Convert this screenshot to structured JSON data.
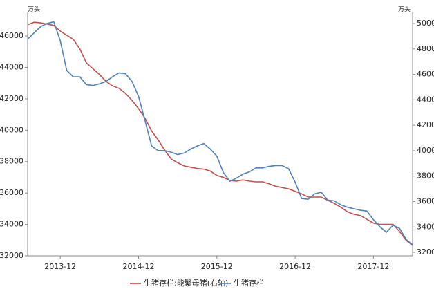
{
  "chart_data": {
    "type": "line",
    "y_label": "万头",
    "y2_label": "万头",
    "categories": [
      null,
      null,
      null,
      null,
      null,
      "2013-12",
      null,
      null,
      null,
      null,
      null,
      null,
      null,
      null,
      null,
      null,
      null,
      "2014-12",
      null,
      null,
      null,
      null,
      null,
      null,
      null,
      null,
      null,
      null,
      null,
      "2015-12",
      null,
      null,
      null,
      null,
      null,
      null,
      null,
      null,
      null,
      null,
      null,
      "2016-12",
      null,
      null,
      null,
      null,
      null,
      null,
      null,
      null,
      null,
      null,
      null,
      "2017-12",
      null,
      null,
      null,
      null,
      null,
      null
    ],
    "series": [
      {
        "name": "生猪存栏:能繁母猪(右轴)",
        "color": "#c0504d",
        "axis": "y2",
        "values": [
          4990,
          5010,
          5005,
          4995,
          4985,
          4940,
          4907,
          4875,
          4800,
          4690,
          4645,
          4600,
          4545,
          4510,
          4490,
          4450,
          4395,
          4330,
          4255,
          4155,
          4085,
          4005,
          3935,
          3905,
          3880,
          3870,
          3860,
          3855,
          3840,
          3805,
          3790,
          3765,
          3760,
          3770,
          3760,
          3755,
          3755,
          3740,
          3720,
          3710,
          3700,
          3680,
          3660,
          3635,
          3635,
          3635,
          3610,
          3585,
          3555,
          3520,
          3500,
          3490,
          3460,
          3430,
          3420,
          3420,
          3420,
          3365,
          3295,
          3255
        ]
      },
      {
        "name": "生猪存栏",
        "color": "#4f81bd",
        "values": [
          45800,
          46200,
          46600,
          46800,
          46900,
          45700,
          43800,
          43400,
          43400,
          42900,
          42850,
          42950,
          43100,
          43400,
          43650,
          43600,
          43100,
          42150,
          40600,
          39000,
          38700,
          38700,
          38600,
          38450,
          38550,
          38800,
          39000,
          39150,
          38800,
          38350,
          37300,
          36750,
          36950,
          37200,
          37350,
          37600,
          37600,
          37700,
          37750,
          37750,
          37550,
          36700,
          35650,
          35600,
          35950,
          36050,
          35550,
          35500,
          35250,
          35100,
          35000,
          34900,
          34850,
          34300,
          33850,
          33500,
          33950,
          33750,
          33050,
          32700
        ]
      }
    ],
    "ylim": [
      32000,
      47500
    ],
    "yticks": [
      32000,
      34000,
      36000,
      38000,
      40000,
      42000,
      44000,
      46000
    ],
    "y2lim": [
      3173,
      5087
    ],
    "y2ticks": [
      3200,
      3400,
      3600,
      3800,
      4000,
      4200,
      4400,
      4600,
      4800,
      5000
    ]
  }
}
